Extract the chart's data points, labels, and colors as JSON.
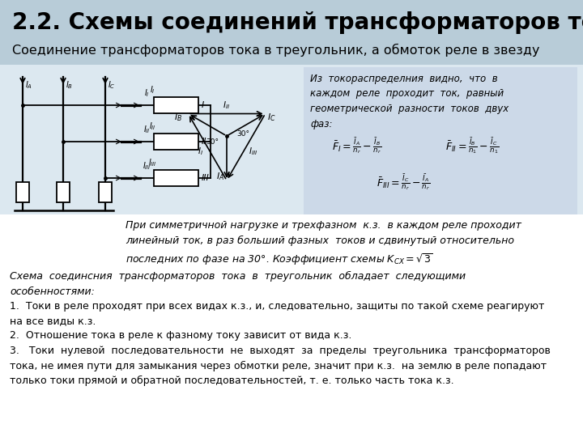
{
  "title": "2.2. Схемы соединений трансформаторов тока",
  "subtitle": "Соединение трансформаторов тока в треугольник, а обмоток реле в звезду",
  "title_fontsize": 20,
  "subtitle_fontsize": 11.5,
  "bg_color": "#ffffff",
  "header_bg": "#b8ccd8",
  "diagram_bg": "#dde8f0",
  "text_color": "#000000",
  "right_box_text": "Из  токораспределния  видно,  что  в\nкаждом  реле  проходит  ток,  равный\nгеометрической  разности  токов  двух\nфаз:",
  "middle_text_italic": "При симметричной нагрузке и трехфазном  к.з.  в каждом реле проходит\nлинейный ток, в раз больший фазных  токов и сдвинутый относительно",
  "middle_text_ksx": "последних по фазе на 30°. Коэффициент схемы",
  "bottom_italic": "Схема  соединсния  трансформаторов  тока  в  треугольник  обладает  следующими\nособенностями:",
  "item1": "1.  Токи в реле проходят при всех видах к.з., и, следовательно, защиты по такой схеме реагируют\nна все виды к.з.",
  "item2": "2.  Отношение тока в реле к фазному току зависит от вида к.з.",
  "item3": "3.   Токи  нулевой  последовательности  не  выходят  за  пределы  треугольника  трансформаторов\nтока, не имея пути для замыкания через обмотки реле, значит при к.з.  на землю в реле попадают\nтолько токи прямой и обратной последовательностей, т. е. только часть тока к.з."
}
